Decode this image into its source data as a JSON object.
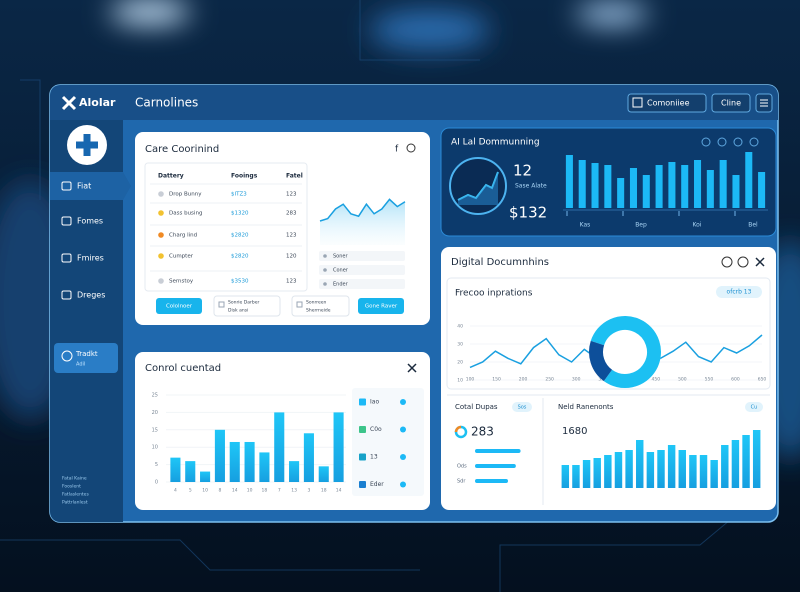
{
  "header": {
    "brand": "Alolar",
    "title": "Carnolines",
    "actions": [
      "Comoniiee",
      "Cline"
    ]
  },
  "sidebar": {
    "items": [
      "Fiat",
      "Fomes",
      "Fmires",
      "Dreges"
    ],
    "card": {
      "title": "Tradkt",
      "subtitle": "Adil"
    },
    "footer": [
      "Fatal Kaine",
      "Fooslent",
      "Fatlaslentes",
      "Pattrlanlest"
    ]
  },
  "care_panel": {
    "title": "Care Coorinind",
    "columns": [
      "Dattery",
      "Fooings",
      "Fatel"
    ],
    "rows": [
      [
        "Drop Bunny",
        "$ITZ3",
        "123"
      ],
      [
        "Dass busing",
        "$1320",
        "283"
      ],
      [
        "Charg lind",
        "$2820",
        "123"
      ],
      [
        "Cumpter",
        "$2820",
        "120"
      ],
      [
        "Sernstoy",
        "$3530",
        "123"
      ]
    ],
    "trend": {
      "values": [
        20,
        22,
        30,
        34,
        26,
        24,
        34,
        26,
        30,
        38,
        32,
        36
      ],
      "ylim": [
        0,
        50
      ]
    },
    "legend": [
      "Soner",
      "Coner",
      "Ender"
    ],
    "buttons": [
      "Cololnoer",
      "Gone Raver"
    ],
    "chips": [
      [
        "Sonrie Darber",
        "Disk ansi"
      ],
      [
        "Sonrreen",
        "Sherrneide"
      ]
    ]
  },
  "ai_panel": {
    "title": "AI Lal Dommunning",
    "count": "12",
    "count_label": "Sase Alate",
    "amount": "$132",
    "chart": {
      "values": [
        53,
        48,
        45,
        43,
        30,
        40,
        33,
        43,
        46,
        43,
        48,
        38,
        48,
        33,
        56,
        36
      ],
      "ylim": [
        0,
        60
      ],
      "labels": [
        "Kas",
        "Bep",
        "Koi",
        "Bel"
      ]
    }
  },
  "control_panel": {
    "title": "Conrol cuentad",
    "chart": {
      "categories": [
        "4",
        "5",
        "10",
        "8",
        "14",
        "10",
        "18",
        "7",
        "13",
        "3",
        "18",
        "14"
      ],
      "values": [
        7,
        6,
        3,
        15,
        11.5,
        11.5,
        8.5,
        20,
        6,
        14,
        4.5,
        20
      ],
      "ylim": [
        0,
        25
      ],
      "yticks": [
        0,
        5,
        10,
        15,
        20,
        25
      ]
    },
    "legend": [
      "Iao",
      "C0o",
      "13",
      "Eder"
    ]
  },
  "docs_panel": {
    "title": "Digital Documnhins",
    "subtitle": "Frecoo inprations",
    "chip": "ofcrb 13",
    "trend": {
      "categories": [
        "100",
        "150",
        "200",
        "250",
        "300",
        "350",
        "400",
        "450",
        "500",
        "550",
        "600",
        "650"
      ],
      "values": [
        17,
        20,
        26,
        22,
        19,
        28,
        33,
        24,
        20,
        27,
        22,
        18,
        25,
        30,
        27,
        22,
        26,
        31,
        23,
        20,
        28,
        25,
        29,
        35
      ],
      "ylim": [
        5,
        45
      ],
      "yticks": [
        10,
        20,
        30,
        40
      ]
    },
    "donut": {
      "values": [
        80,
        20
      ],
      "colors": [
        "#1cc0f2",
        "#0d4f9a"
      ]
    },
    "totals": {
      "title": "Cotal Dupas",
      "chip": "Sos",
      "value": "283",
      "labels": [
        null,
        "Ods",
        "Sdr"
      ],
      "values": [
        58,
        52,
        42
      ],
      "xlim": [
        0,
        70
      ]
    },
    "results": {
      "title": "Neld Ranenonts",
      "chip": "Cu",
      "value": "1680",
      "values": [
        23,
        23,
        28,
        30,
        33,
        36,
        38,
        48,
        36,
        38,
        43,
        38,
        33,
        33,
        28,
        43,
        48,
        53,
        58
      ],
      "ylim": [
        0,
        60
      ]
    }
  }
}
